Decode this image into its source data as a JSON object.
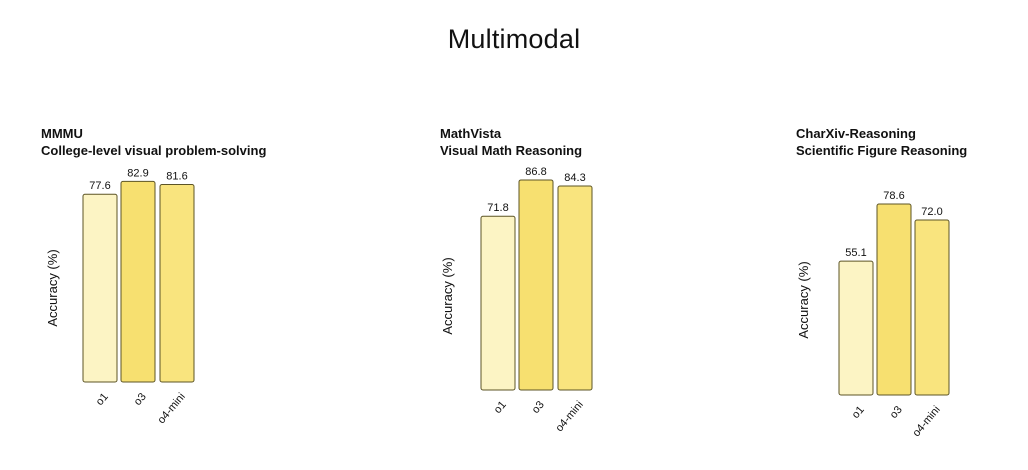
{
  "page": {
    "title": "Multimodal"
  },
  "colors": {
    "o1": "#fcf4c4",
    "o3": "#f7e070",
    "o4-mini": "#f9e47e",
    "stroke": "#5c5426"
  },
  "chart_data": [
    {
      "type": "bar",
      "title": "MMMU",
      "subtitle": "College-level visual problem-solving",
      "ylabel": "Accuracy (%)",
      "xlabel": "",
      "categories": [
        "o1",
        "o3",
        "o4-mini"
      ],
      "values": [
        77.6,
        82.9,
        81.6
      ],
      "value_labels": [
        "77.6",
        "82.9",
        "81.6"
      ],
      "ylim": [
        0,
        100
      ]
    },
    {
      "type": "bar",
      "title": "MathVista",
      "subtitle": "Visual Math Reasoning",
      "ylabel": "Accuracy (%)",
      "xlabel": "",
      "categories": [
        "o1",
        "o3",
        "o4-mini"
      ],
      "values": [
        71.8,
        86.8,
        84.3
      ],
      "value_labels": [
        "71.8",
        "86.8",
        "84.3"
      ],
      "ylim": [
        0,
        100
      ]
    },
    {
      "type": "bar",
      "title": "CharXiv-Reasoning",
      "subtitle": "Scientific Figure Reasoning",
      "ylabel": "Accuracy (%)",
      "xlabel": "",
      "categories": [
        "o1",
        "o3",
        "o4-mini"
      ],
      "values": [
        55.1,
        78.6,
        72.0
      ],
      "value_labels": [
        "55.1",
        "78.6",
        "72.0"
      ],
      "ylim": [
        0,
        100
      ]
    }
  ]
}
